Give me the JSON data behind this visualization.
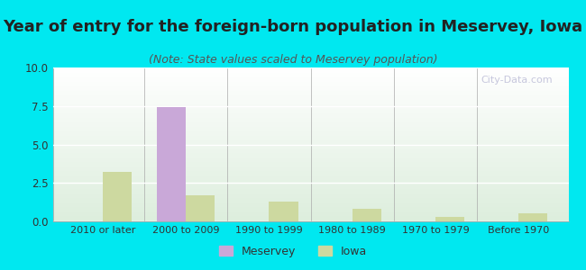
{
  "title": "Year of entry for the foreign-born population in Meservey, Iowa",
  "subtitle": "(Note: State values scaled to Meservey population)",
  "categories": [
    "2010 or later",
    "2000 to 2009",
    "1990 to 1999",
    "1980 to 1989",
    "1970 to 1979",
    "Before 1970"
  ],
  "meservey_values": [
    0,
    7.4,
    0,
    0,
    0,
    0
  ],
  "iowa_values": [
    3.2,
    1.7,
    1.3,
    0.8,
    0.3,
    0.5
  ],
  "meservey_color": "#c9a8d8",
  "iowa_color": "#cdd9a0",
  "background_outer": "#00e8f0",
  "ylim": [
    0,
    10
  ],
  "yticks": [
    0,
    2.5,
    5,
    7.5,
    10
  ],
  "bar_width": 0.35,
  "title_fontsize": 13,
  "subtitle_fontsize": 9,
  "legend_labels": [
    "Meservey",
    "Iowa"
  ],
  "watermark": "City-Data.com"
}
